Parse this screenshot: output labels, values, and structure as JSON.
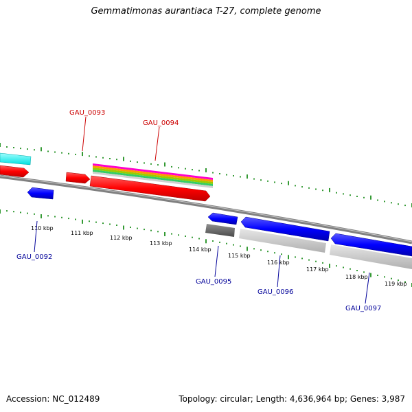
{
  "title": "Gemmatimonas aurantiaca T-27, complete genome",
  "footer": {
    "accession": "Accession: NC_012489",
    "topology": "Topology: circular; Length: 4,636,964 bp; Genes: 3,987"
  },
  "scale_labels": [
    "110 kbp",
    "111 kbp",
    "112 kbp",
    "113 kbp",
    "114 kbp",
    "115 kbp",
    "116 kbp",
    "117 kbp",
    "118 kbp",
    "119 kbp"
  ],
  "gene_labels": {
    "gau_0092": "GAU_0092",
    "gau_0093": "GAU_0093",
    "gau_0094": "GAU_0094",
    "gau_0095": "GAU_0095",
    "gau_0096": "GAU_0096",
    "gau_0097": "GAU_0097"
  },
  "colors": {
    "forward_strand_gene": "#ff0000",
    "reverse_strand_gene": "#0000ff",
    "cyan_feature": "#00ffff",
    "forward_label": "#cc0000",
    "reverse_label": "#000099",
    "tick": "#008000",
    "backbone": "#808080"
  }
}
